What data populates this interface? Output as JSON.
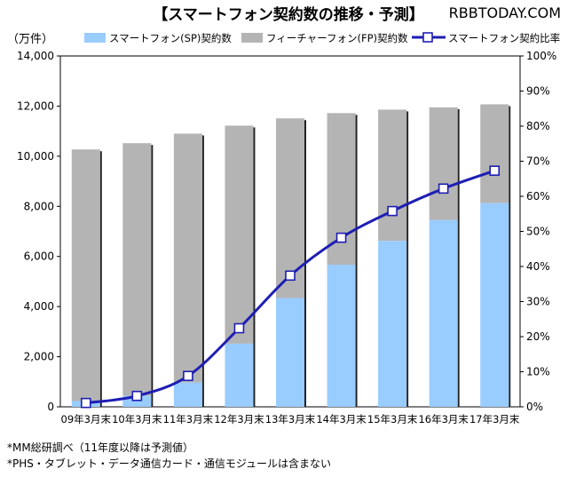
{
  "watermark": "RBBTODAY.COM",
  "chart_data": {
    "type": "bar",
    "title": "【スマートフォン契約数の推移・予測】",
    "y_unit_label": "（万件）",
    "categories": [
      "09年3月末",
      "10年3月末",
      "11年3月末",
      "12年3月末",
      "13年3月末",
      "14年3月末",
      "15年3月末",
      "16年3月末",
      "17年3月末"
    ],
    "series": [
      {
        "name": "スマートフォン(SP)契約数",
        "kind": "bar",
        "axis": "left",
        "color": "#99ccff",
        "values": [
          230,
          440,
          970,
          2520,
          4340,
          5670,
          6620,
          7450,
          8130
        ]
      },
      {
        "name": "フィーチャーフォン(FP)契約数",
        "kind": "bar",
        "axis": "left",
        "color": "#b4b4b4",
        "values": [
          10040,
          10080,
          9930,
          8700,
          7170,
          6050,
          5240,
          4500,
          3940
        ]
      },
      {
        "name": "スマートフォン契約比率",
        "kind": "line",
        "axis": "right",
        "color": "#1e1eb4",
        "values": [
          1.1,
          3.1,
          8.8,
          22.4,
          37.4,
          48.2,
          55.8,
          62.2,
          67.3
        ]
      }
    ],
    "y_left": {
      "min": 0,
      "max": 14000,
      "ticks": [
        "0",
        "2,000",
        "4,000",
        "6,000",
        "8,000",
        "10,000",
        "12,000",
        "14,000"
      ]
    },
    "y_right": {
      "min": 0,
      "max": 100,
      "ticks": [
        "0%",
        "10%",
        "20%",
        "30%",
        "40%",
        "50%",
        "60%",
        "70%",
        "80%",
        "90%",
        "100%"
      ]
    },
    "grid": false,
    "legend": "top"
  },
  "notes": [
    "*MM総研調べ（11年度以降は予測値）",
    "*PHS・タブレット・データ通信カード・通信モジュールは含まない"
  ]
}
